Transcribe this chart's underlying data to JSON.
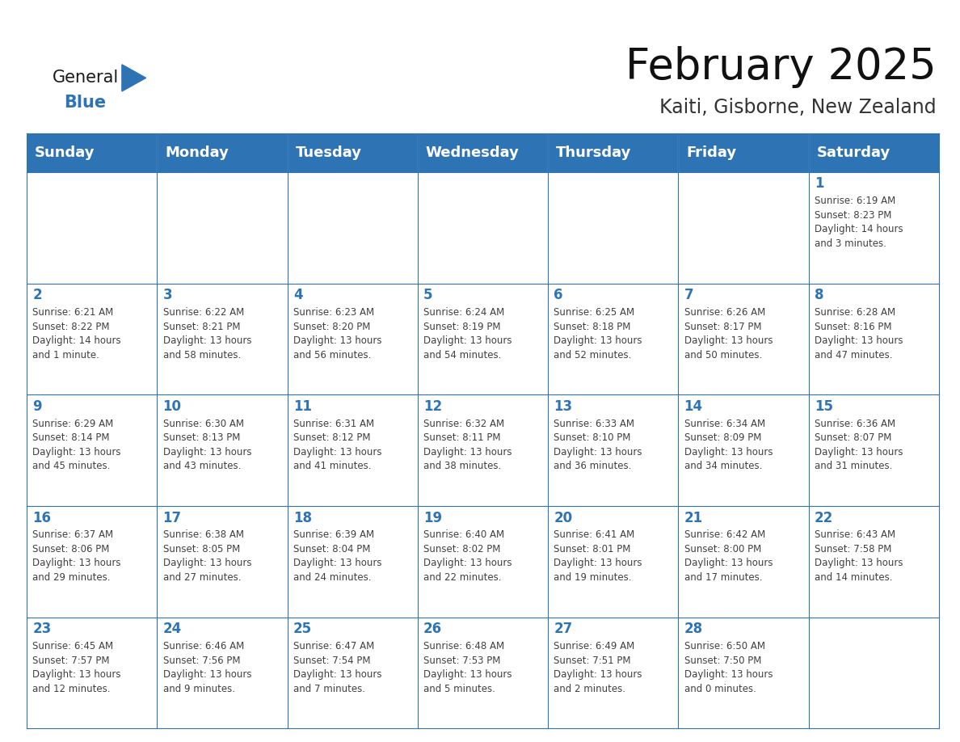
{
  "title": "February 2025",
  "subtitle": "Kaiti, Gisborne, New Zealand",
  "header_bg_color": "#2E74B5",
  "header_text_color": "#FFFFFF",
  "cell_bg_color": "#FFFFFF",
  "border_color": "#2E74B5",
  "day_number_color": "#2E74B5",
  "cell_text_color": "#404040",
  "background_color": "#FFFFFF",
  "days_of_week": [
    "Sunday",
    "Monday",
    "Tuesday",
    "Wednesday",
    "Thursday",
    "Friday",
    "Saturday"
  ],
  "title_fontsize": 38,
  "subtitle_fontsize": 17,
  "header_fontsize": 13,
  "day_num_fontsize": 12,
  "cell_text_fontsize": 8.5,
  "logo_general_color": "#1a1a1a",
  "logo_blue_color": "#2E74B5",
  "weeks": [
    [
      {
        "day": "",
        "text": ""
      },
      {
        "day": "",
        "text": ""
      },
      {
        "day": "",
        "text": ""
      },
      {
        "day": "",
        "text": ""
      },
      {
        "day": "",
        "text": ""
      },
      {
        "day": "",
        "text": ""
      },
      {
        "day": "1",
        "text": "Sunrise: 6:19 AM\nSunset: 8:23 PM\nDaylight: 14 hours\nand 3 minutes."
      }
    ],
    [
      {
        "day": "2",
        "text": "Sunrise: 6:21 AM\nSunset: 8:22 PM\nDaylight: 14 hours\nand 1 minute."
      },
      {
        "day": "3",
        "text": "Sunrise: 6:22 AM\nSunset: 8:21 PM\nDaylight: 13 hours\nand 58 minutes."
      },
      {
        "day": "4",
        "text": "Sunrise: 6:23 AM\nSunset: 8:20 PM\nDaylight: 13 hours\nand 56 minutes."
      },
      {
        "day": "5",
        "text": "Sunrise: 6:24 AM\nSunset: 8:19 PM\nDaylight: 13 hours\nand 54 minutes."
      },
      {
        "day": "6",
        "text": "Sunrise: 6:25 AM\nSunset: 8:18 PM\nDaylight: 13 hours\nand 52 minutes."
      },
      {
        "day": "7",
        "text": "Sunrise: 6:26 AM\nSunset: 8:17 PM\nDaylight: 13 hours\nand 50 minutes."
      },
      {
        "day": "8",
        "text": "Sunrise: 6:28 AM\nSunset: 8:16 PM\nDaylight: 13 hours\nand 47 minutes."
      }
    ],
    [
      {
        "day": "9",
        "text": "Sunrise: 6:29 AM\nSunset: 8:14 PM\nDaylight: 13 hours\nand 45 minutes."
      },
      {
        "day": "10",
        "text": "Sunrise: 6:30 AM\nSunset: 8:13 PM\nDaylight: 13 hours\nand 43 minutes."
      },
      {
        "day": "11",
        "text": "Sunrise: 6:31 AM\nSunset: 8:12 PM\nDaylight: 13 hours\nand 41 minutes."
      },
      {
        "day": "12",
        "text": "Sunrise: 6:32 AM\nSunset: 8:11 PM\nDaylight: 13 hours\nand 38 minutes."
      },
      {
        "day": "13",
        "text": "Sunrise: 6:33 AM\nSunset: 8:10 PM\nDaylight: 13 hours\nand 36 minutes."
      },
      {
        "day": "14",
        "text": "Sunrise: 6:34 AM\nSunset: 8:09 PM\nDaylight: 13 hours\nand 34 minutes."
      },
      {
        "day": "15",
        "text": "Sunrise: 6:36 AM\nSunset: 8:07 PM\nDaylight: 13 hours\nand 31 minutes."
      }
    ],
    [
      {
        "day": "16",
        "text": "Sunrise: 6:37 AM\nSunset: 8:06 PM\nDaylight: 13 hours\nand 29 minutes."
      },
      {
        "day": "17",
        "text": "Sunrise: 6:38 AM\nSunset: 8:05 PM\nDaylight: 13 hours\nand 27 minutes."
      },
      {
        "day": "18",
        "text": "Sunrise: 6:39 AM\nSunset: 8:04 PM\nDaylight: 13 hours\nand 24 minutes."
      },
      {
        "day": "19",
        "text": "Sunrise: 6:40 AM\nSunset: 8:02 PM\nDaylight: 13 hours\nand 22 minutes."
      },
      {
        "day": "20",
        "text": "Sunrise: 6:41 AM\nSunset: 8:01 PM\nDaylight: 13 hours\nand 19 minutes."
      },
      {
        "day": "21",
        "text": "Sunrise: 6:42 AM\nSunset: 8:00 PM\nDaylight: 13 hours\nand 17 minutes."
      },
      {
        "day": "22",
        "text": "Sunrise: 6:43 AM\nSunset: 7:58 PM\nDaylight: 13 hours\nand 14 minutes."
      }
    ],
    [
      {
        "day": "23",
        "text": "Sunrise: 6:45 AM\nSunset: 7:57 PM\nDaylight: 13 hours\nand 12 minutes."
      },
      {
        "day": "24",
        "text": "Sunrise: 6:46 AM\nSunset: 7:56 PM\nDaylight: 13 hours\nand 9 minutes."
      },
      {
        "day": "25",
        "text": "Sunrise: 6:47 AM\nSunset: 7:54 PM\nDaylight: 13 hours\nand 7 minutes."
      },
      {
        "day": "26",
        "text": "Sunrise: 6:48 AM\nSunset: 7:53 PM\nDaylight: 13 hours\nand 5 minutes."
      },
      {
        "day": "27",
        "text": "Sunrise: 6:49 AM\nSunset: 7:51 PM\nDaylight: 13 hours\nand 2 minutes."
      },
      {
        "day": "28",
        "text": "Sunrise: 6:50 AM\nSunset: 7:50 PM\nDaylight: 13 hours\nand 0 minutes."
      },
      {
        "day": "",
        "text": ""
      }
    ]
  ]
}
